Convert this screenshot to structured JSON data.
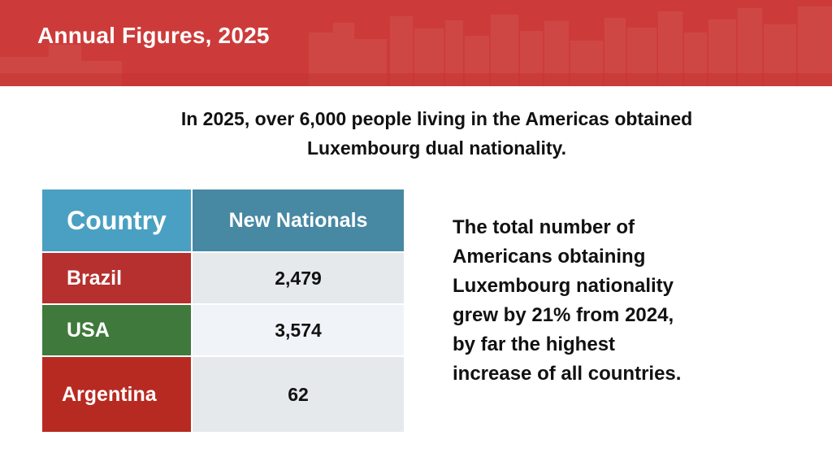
{
  "banner": {
    "title": "Annual Figures, 2025",
    "color": "#cc3b3a"
  },
  "intro": {
    "lines": [
      "In 2025, over 6,000 people living in the Americas obtained",
      "Luxembourg dual nationality."
    ]
  },
  "table": {
    "headers": [
      "Country",
      "New Nationals"
    ],
    "header_colors": [
      "#4aa0c2",
      "#4788a3"
    ],
    "rows": [
      {
        "country": "Brazil",
        "value": "2,479",
        "color": "#b5302e",
        "cell_bg": "#e6e9ec"
      },
      {
        "country": "USA",
        "value": "3,574",
        "color": "#3f7a3c",
        "cell_bg": "#f0f4f8"
      },
      {
        "country": "Argentina",
        "value": "62",
        "color": "#b72a22",
        "cell_bg": "#e6e9ec"
      }
    ]
  },
  "side_text": {
    "lines": [
      "The total number of",
      "Americans obtaining",
      "Luxembourg nationality",
      "grew by 21% from 2024,",
      "by far the highest",
      "increase of all countries."
    ]
  }
}
